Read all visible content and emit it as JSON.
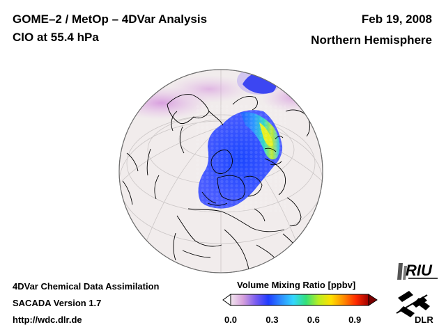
{
  "header": {
    "title_line1": "GOME–2 / MetOp – 4DVar Analysis",
    "title_line2": "ClO at 55.4 hPa",
    "date": "Feb 19, 2008",
    "region": "Northern Hemisphere"
  },
  "footer": {
    "line1": "4DVar Chemical Data Assimilation",
    "line2": "SACADA Version 1.7",
    "line3": "http://wdc.dlr.de"
  },
  "colorbar": {
    "title": "Volume Mixing Ratio [ppbv]",
    "range": [
      0.0,
      1.0
    ],
    "ticks": [
      {
        "label": "0.0",
        "value": 0.0
      },
      {
        "label": "0.3",
        "value": 0.3
      },
      {
        "label": "0.6",
        "value": 0.6
      },
      {
        "label": "0.9",
        "value": 0.9
      }
    ],
    "colors": [
      "#f2e6ef",
      "#d6a0dc",
      "#7a5cf0",
      "#1f3cff",
      "#2d8cff",
      "#33d6ff",
      "#33e07a",
      "#b8ee22",
      "#ffe000",
      "#ff8c00",
      "#ff2a00",
      "#a00000"
    ]
  },
  "logos": {
    "riu": "RIU",
    "dlr": "DLR"
  },
  "map": {
    "background_color": "#f1ecec",
    "coastline_color": "#000000",
    "grid_color": "#c8c4c4"
  }
}
